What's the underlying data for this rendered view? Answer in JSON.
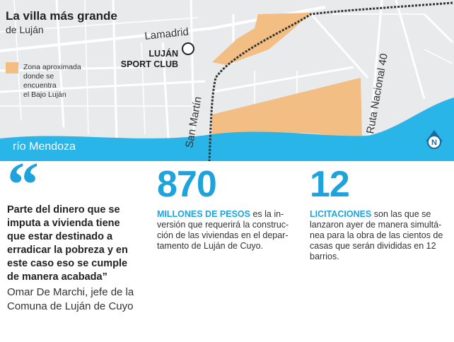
{
  "map": {
    "title": "La villa más grande",
    "subtitle": "de Luján",
    "legend": [
      "Zona aproximada",
      "donde se",
      "encuentra",
      "el Bajo Luján"
    ],
    "labels": {
      "street": "Lamadrid",
      "club": [
        "LUJÁN",
        "SPORT CLUB"
      ],
      "san_martin": "San Martín",
      "ruta": "Ruta Nacional 40",
      "river": "río Mendoza",
      "north": "N"
    }
  },
  "quote": {
    "mark": "“",
    "lines": [
      "Parte del dinero que se",
      "imputa a vivienda tiene",
      "que estar destinado a",
      "erradicar la pobreza y en",
      "este caso eso se cumple",
      "de manera acabada”"
    ],
    "attribution": [
      "Omar De Marchi, jefe de la",
      "Comuna de Luján de Cuyo"
    ]
  },
  "stats": [
    {
      "number": 870,
      "lead": "MILLONES DE PESOS",
      "lines": [
        "es la in-",
        "versión que requerirá la construc-",
        "ción de las viviendas en el depar-",
        "tamento de Luján de Cuyo."
      ]
    },
    {
      "number": 12,
      "lead": "LICITACIONES",
      "lines": [
        "son las que se",
        "lanzaron ayer de manera simultá-",
        "nea para la obra de las cientos de",
        "casas que serán divididas en 12",
        "barrios."
      ]
    }
  ]
}
